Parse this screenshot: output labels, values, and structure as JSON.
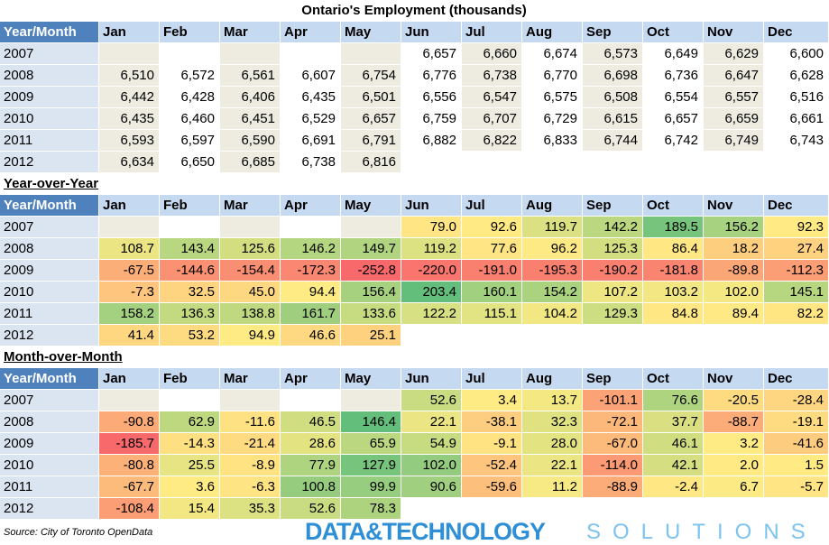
{
  "title": "Ontario's Employment (thousands)",
  "tables": [
    {
      "heatmap": false,
      "header": [
        "Year/Month",
        "Jan",
        "Feb",
        "Mar",
        "Apr",
        "May",
        "Jun",
        "Jul",
        "Aug",
        "Sep",
        "Oct",
        "Nov",
        "Dec"
      ],
      "rows": [
        {
          "label": "2007",
          "cells": [
            null,
            null,
            null,
            null,
            null,
            "6,657",
            "6,660",
            "6,674",
            "6,573",
            "6,649",
            "6,629",
            "6,600"
          ]
        },
        {
          "label": "2008",
          "cells": [
            "6,510",
            "6,572",
            "6,561",
            "6,607",
            "6,754",
            "6,776",
            "6,738",
            "6,770",
            "6,698",
            "6,736",
            "6,647",
            "6,628"
          ]
        },
        {
          "label": "2009",
          "cells": [
            "6,442",
            "6,428",
            "6,406",
            "6,435",
            "6,501",
            "6,556",
            "6,547",
            "6,575",
            "6,508",
            "6,554",
            "6,557",
            "6,516"
          ]
        },
        {
          "label": "2010",
          "cells": [
            "6,435",
            "6,460",
            "6,451",
            "6,529",
            "6,657",
            "6,759",
            "6,707",
            "6,729",
            "6,615",
            "6,657",
            "6,659",
            "6,661"
          ]
        },
        {
          "label": "2011",
          "cells": [
            "6,593",
            "6,597",
            "6,590",
            "6,691",
            "6,791",
            "6,882",
            "6,822",
            "6,833",
            "6,744",
            "6,742",
            "6,749",
            "6,743"
          ]
        },
        {
          "label": "2012",
          "cells": [
            "6,634",
            "6,650",
            "6,685",
            "6,738",
            "6,816",
            null,
            null,
            null,
            null,
            null,
            null,
            null
          ]
        }
      ]
    },
    {
      "heading": "Year-over-Year",
      "heatmap": true,
      "header": [
        "Year/Month",
        "Jan",
        "Feb",
        "Mar",
        "Apr",
        "May",
        "Jun",
        "Jul",
        "Aug",
        "Sep",
        "Oct",
        "Nov",
        "Dec"
      ],
      "rows": [
        {
          "label": "2007",
          "cells": [
            null,
            null,
            null,
            null,
            null,
            "79.0",
            "92.6",
            "119.7",
            "142.2",
            "189.5",
            "156.2",
            "92.3"
          ]
        },
        {
          "label": "2008",
          "cells": [
            "108.7",
            "143.4",
            "125.6",
            "146.2",
            "149.7",
            "119.2",
            "77.6",
            "96.2",
            "125.3",
            "86.4",
            "18.2",
            "27.4"
          ]
        },
        {
          "label": "2009",
          "cells": [
            "-67.5",
            "-144.6",
            "-154.4",
            "-172.3",
            "-252.8",
            "-220.0",
            "-191.0",
            "-195.3",
            "-190.2",
            "-181.8",
            "-89.8",
            "-112.3"
          ]
        },
        {
          "label": "2010",
          "cells": [
            "-7.3",
            "32.5",
            "45.0",
            "94.4",
            "156.4",
            "203.4",
            "160.1",
            "154.2",
            "107.2",
            "103.2",
            "102.0",
            "145.1"
          ]
        },
        {
          "label": "2011",
          "cells": [
            "158.2",
            "136.3",
            "138.8",
            "161.7",
            "133.6",
            "122.2",
            "115.1",
            "104.2",
            "129.3",
            "84.8",
            "89.4",
            "82.2"
          ]
        },
        {
          "label": "2012",
          "cells": [
            "41.4",
            "53.2",
            "94.9",
            "46.6",
            "25.1",
            null,
            null,
            null,
            null,
            null,
            null,
            null
          ]
        }
      ]
    },
    {
      "heading": "Month-over-Month",
      "heatmap": true,
      "header": [
        "Year/Month",
        "Jan",
        "Feb",
        "Mar",
        "Apr",
        "May",
        "Jun",
        "Jul",
        "Aug",
        "Sep",
        "Oct",
        "Nov",
        "Dec"
      ],
      "rows": [
        {
          "label": "2007",
          "cells": [
            null,
            null,
            null,
            null,
            null,
            "52.6",
            "3.4",
            "13.7",
            "-101.1",
            "76.6",
            "-20.5",
            "-28.4"
          ]
        },
        {
          "label": "2008",
          "cells": [
            "-90.8",
            "62.9",
            "-11.6",
            "46.5",
            "146.4",
            "22.1",
            "-38.1",
            "32.3",
            "-72.1",
            "37.7",
            "-88.7",
            "-19.1"
          ]
        },
        {
          "label": "2009",
          "cells": [
            "-185.7",
            "-14.3",
            "-21.4",
            "28.6",
            "65.9",
            "54.9",
            "-9.1",
            "28.0",
            "-67.0",
            "46.1",
            "3.2",
            "-41.6"
          ]
        },
        {
          "label": "2010",
          "cells": [
            "-80.8",
            "25.5",
            "-8.9",
            "77.9",
            "127.9",
            "102.0",
            "-52.4",
            "22.1",
            "-114.0",
            "42.1",
            "2.0",
            "1.5"
          ]
        },
        {
          "label": "2011",
          "cells": [
            "-67.7",
            "3.6",
            "-6.3",
            "100.8",
            "99.9",
            "90.6",
            "-59.6",
            "11.2",
            "-88.9",
            "-2.4",
            "6.7",
            "-5.7"
          ]
        },
        {
          "label": "2012",
          "cells": [
            "-108.4",
            "15.4",
            "35.3",
            "52.6",
            "78.3",
            null,
            null,
            null,
            null,
            null,
            null,
            null
          ]
        }
      ]
    }
  ],
  "source": "Source: City of Toronto OpenData",
  "logo": {
    "left": "DATA&TECHNOLOGY",
    "right": "SOLUTIONS"
  }
}
